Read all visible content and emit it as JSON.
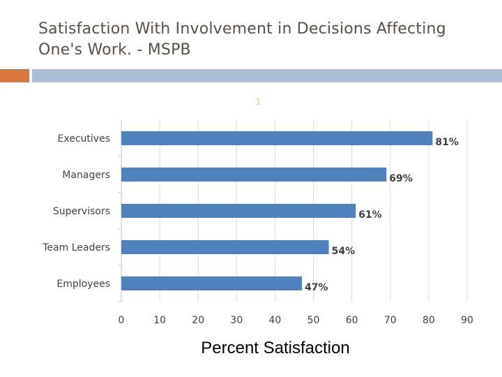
{
  "slide": {
    "title_line1": "Satisfaction With Involvement in Decisions Affecting",
    "title_line2": "One's Work.   - MSPB",
    "marker": "1"
  },
  "colors": {
    "title": "#5a4e45",
    "accent_orange": "#d9773d",
    "accent_blue": "#a9bfd6",
    "bar": "#4f81bd",
    "grid": "#d9d9d9"
  },
  "chart_data": {
    "type": "bar",
    "orientation": "horizontal",
    "categories": [
      "Executives",
      "Managers",
      "Supervisors",
      "Team Leaders",
      "Employees"
    ],
    "values": [
      81,
      69,
      61,
      54,
      47
    ],
    "value_labels": [
      "81%",
      "69%",
      "61%",
      "54%",
      "47%"
    ],
    "xlabel": "Percent Satisfaction",
    "ylabel": "",
    "xlim": [
      0,
      90
    ],
    "xticks": [
      0,
      10,
      20,
      30,
      40,
      50,
      60,
      70,
      80,
      90
    ],
    "grid": true,
    "legend": "none"
  }
}
